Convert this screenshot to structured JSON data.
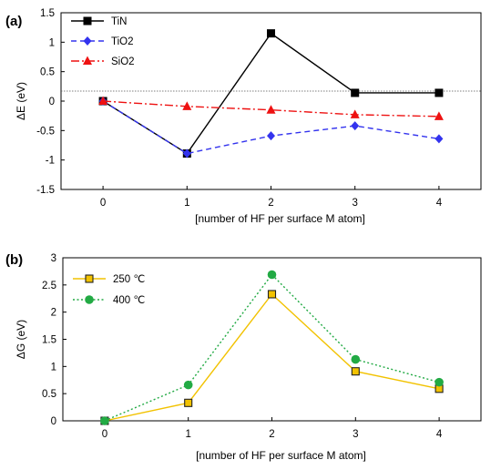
{
  "chart_data": [
    {
      "panel_label": "(a)",
      "type": "line",
      "xlabel": "[number of HF per surface M atom]",
      "ylabel": "ΔE (eV)",
      "x": [
        0,
        1,
        2,
        3,
        4
      ],
      "xlim": [
        -0.5,
        4.5
      ],
      "ylim": [
        -1.5,
        1.5
      ],
      "xticks": [
        "0",
        "1",
        "2",
        "3",
        "4"
      ],
      "yticks": [
        "-1.5",
        "-1",
        "-0.5",
        "0",
        "0.5",
        "1",
        "1.5"
      ],
      "reference_line_y": 0.17,
      "legend_position": "top-left",
      "series": [
        {
          "name": "TiN",
          "values": [
            0,
            -0.89,
            1.15,
            0.14,
            0.14
          ],
          "color": "#000000",
          "dash": "solid",
          "marker": "square-filled"
        },
        {
          "name": "TiO2",
          "values": [
            0,
            -0.89,
            -0.59,
            -0.42,
            -0.64
          ],
          "color": "#3333ee",
          "dash": "dash",
          "marker": "diamond-filled"
        },
        {
          "name": "SiO2",
          "values": [
            0,
            -0.09,
            -0.15,
            -0.23,
            -0.26
          ],
          "color": "#ee1111",
          "dash": "dashdot",
          "marker": "triangle-filled"
        }
      ]
    },
    {
      "panel_label": "(b)",
      "type": "line",
      "xlabel": "[number of HF per surface M atom]",
      "ylabel": "ΔG (eV)",
      "x": [
        0,
        1,
        2,
        3,
        4
      ],
      "xlim": [
        -0.5,
        4.5
      ],
      "ylim": [
        0,
        3
      ],
      "xticks": [
        "0",
        "1",
        "2",
        "3",
        "4"
      ],
      "yticks": [
        "0",
        "0.5",
        "1",
        "1.5",
        "2",
        "2.5",
        "3"
      ],
      "legend_position": "top-left",
      "series": [
        {
          "name": "250 ℃",
          "values": [
            0,
            0.33,
            2.33,
            0.91,
            0.59
          ],
          "color": "#f2c200",
          "dash": "solid",
          "marker": "square-open"
        },
        {
          "name": "400 ℃",
          "values": [
            0,
            0.66,
            2.69,
            1.13,
            0.71
          ],
          "color": "#22aa44",
          "dash": "dot",
          "marker": "circle-filled"
        }
      ]
    }
  ]
}
